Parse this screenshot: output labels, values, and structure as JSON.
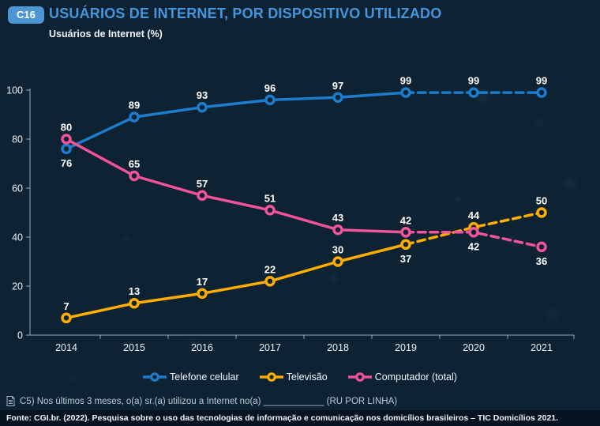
{
  "header": {
    "badge": "C16",
    "title": "USUÁRIOS DE INTERNET, POR DISPOSITIVO UTILIZADO",
    "subtitle": "Usuários de Internet (%)"
  },
  "colors": {
    "background": "#0d2232",
    "title_blue": "#4596dc",
    "badge_blue": "#4e95d3",
    "axis": "#c7d3dc",
    "tick_label": "#eef3f7",
    "value_label": "#ffffff",
    "telefone_celular": "#1e7ccd",
    "televisao": "#ffae00",
    "computador": "#f2539b",
    "source_bar": "#071320"
  },
  "chart_data": {
    "type": "line",
    "x": [
      2014,
      2015,
      2016,
      2017,
      2018,
      2019,
      2020,
      2021
    ],
    "ylim": [
      0,
      100
    ],
    "yticks": [
      0,
      20,
      40,
      60,
      80,
      100
    ],
    "grid": false,
    "legend_position": "bottom",
    "dashed_from_index": 5,
    "series": [
      {
        "name": "Telefone celular",
        "color": "#1e7ccd",
        "values": [
          76,
          89,
          93,
          96,
          97,
          99,
          99,
          99
        ],
        "label_below_indices": [
          0
        ]
      },
      {
        "name": "Televisão",
        "color": "#ffae00",
        "values": [
          7,
          13,
          17,
          22,
          30,
          37,
          44,
          50
        ],
        "label_below_indices": [
          5
        ]
      },
      {
        "name": "Computador (total)",
        "color": "#f2539b",
        "values": [
          80,
          65,
          57,
          51,
          43,
          42,
          42,
          36
        ],
        "label_below_indices": [
          6,
          7
        ]
      }
    ]
  },
  "footer": {
    "question": "C5) Nos últimos 3 meses, o(a) sr.(a) utilizou a Internet no(a) ____________ (RU POR LINHA)",
    "source": "Fonte: CGI.br. (2022). Pesquisa sobre o uso das tecnologias de informação e comunicação nos domicílios brasileiros – TIC Domicílios 2021."
  }
}
